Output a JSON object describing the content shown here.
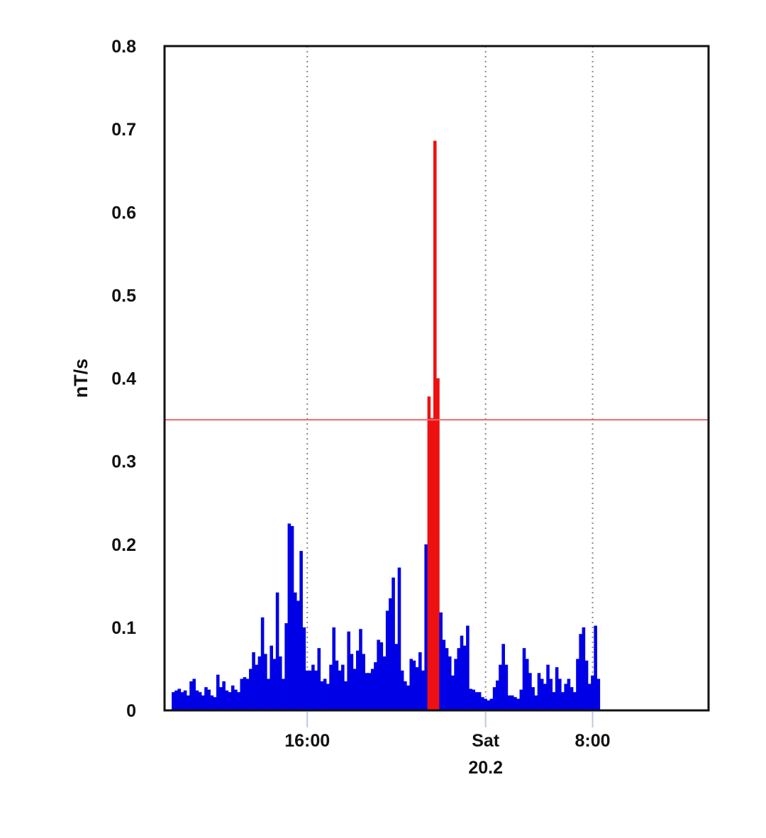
{
  "chart_data": {
    "type": "bar",
    "title": "",
    "xlabel": "",
    "ylabel": "nT/s",
    "ylim": [
      0,
      0.8
    ],
    "yticks": [
      "0",
      "0.1",
      "0.2",
      "0.3",
      "0.4",
      "0.5",
      "0.6",
      "0.7",
      "0.8"
    ],
    "x_unit": "hours",
    "x_range": [
      8,
      38.5
    ],
    "xticks": [
      {
        "x": 16,
        "label": "16:00",
        "sublabel": ""
      },
      {
        "x": 26,
        "label": "Sat",
        "sublabel": "20.2"
      },
      {
        "x": 32,
        "label": "8:00",
        "sublabel": ""
      }
    ],
    "grid": "vertical dotted lines at labeled ticks",
    "threshold": {
      "value": 0.35,
      "color": "#ee6a6a"
    },
    "colors": {
      "normal": "#0000e6",
      "above_threshold": "#ee1111",
      "axis": "#111111",
      "grid": "#888888"
    },
    "bar_interval_hours": 0.1667,
    "start_hour": 8.4,
    "values": [
      0.022,
      0.024,
      0.026,
      0.022,
      0.024,
      0.018,
      0.035,
      0.038,
      0.024,
      0.022,
      0.018,
      0.028,
      0.025,
      0.018,
      0.016,
      0.043,
      0.028,
      0.035,
      0.024,
      0.022,
      0.03,
      0.025,
      0.022,
      0.038,
      0.04,
      0.038,
      0.05,
      0.07,
      0.055,
      0.065,
      0.112,
      0.068,
      0.038,
      0.078,
      0.062,
      0.142,
      0.065,
      0.038,
      0.105,
      0.225,
      0.222,
      0.142,
      0.132,
      0.192,
      0.1,
      0.048,
      0.048,
      0.055,
      0.048,
      0.075,
      0.035,
      0.038,
      0.032,
      0.055,
      0.1,
      0.06,
      0.048,
      0.055,
      0.035,
      0.095,
      0.068,
      0.05,
      0.072,
      0.098,
      0.068,
      0.045,
      0.045,
      0.05,
      0.058,
      0.085,
      0.082,
      0.065,
      0.12,
      0.135,
      0.16,
      0.08,
      0.172,
      0.048,
      0.035,
      0.03,
      0.062,
      0.06,
      0.052,
      0.07,
      0.048,
      0.2,
      0.378,
      0.352,
      0.686,
      0.4,
      0.118,
      0.085,
      0.075,
      0.065,
      0.042,
      0.062,
      0.075,
      0.09,
      0.078,
      0.102,
      0.026,
      0.025,
      0.022,
      0.022,
      0.016,
      0.014,
      0.012,
      0.014,
      0.028,
      0.036,
      0.055,
      0.08,
      0.055,
      0.018,
      0.018,
      0.016,
      0.014,
      0.025,
      0.075,
      0.062,
      0.045,
      0.028,
      0.018,
      0.045,
      0.038,
      0.032,
      0.055,
      0.038,
      0.022,
      0.052,
      0.038,
      0.022,
      0.032,
      0.038,
      0.028,
      0.022,
      0.062,
      0.092,
      0.1,
      0.06,
      0.032,
      0.042,
      0.102,
      0.038
    ]
  }
}
